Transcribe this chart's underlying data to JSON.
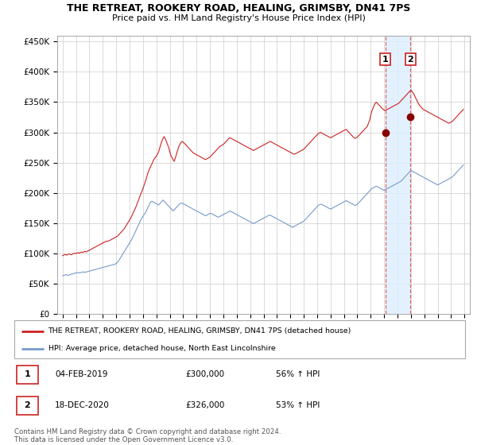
{
  "title": "THE RETREAT, ROOKERY ROAD, HEALING, GRIMSBY, DN41 7PS",
  "subtitle": "Price paid vs. HM Land Registry's House Price Index (HPI)",
  "legend_line1": "THE RETREAT, ROOKERY ROAD, HEALING, GRIMSBY, DN41 7PS (detached house)",
  "legend_line2": "HPI: Average price, detached house, North East Lincolnshire",
  "footnote": "Contains HM Land Registry data © Crown copyright and database right 2024.\nThis data is licensed under the Open Government Licence v3.0.",
  "annotation1": {
    "num": "1",
    "date": "04-FEB-2019",
    "price": "£300,000",
    "hpi": "56% ↑ HPI"
  },
  "annotation2": {
    "num": "2",
    "date": "18-DEC-2020",
    "price": "£326,000",
    "hpi": "53% ↑ HPI"
  },
  "vline1_x": 2019.08,
  "vline2_x": 2020.96,
  "dot1_x": 2019.08,
  "dot1_y": 300000,
  "dot2_x": 2020.96,
  "dot2_y": 326000,
  "red_color": "#cc2222",
  "blue_color": "#7799cc",
  "vline_color": "#dd6666",
  "highlight_color": "#ddeeff",
  "ylabel_vals": [
    0,
    50000,
    100000,
    150000,
    200000,
    250000,
    300000,
    350000,
    400000,
    450000
  ],
  "ylabel_labels": [
    "£0",
    "£50K",
    "£100K",
    "£150K",
    "£200K",
    "£250K",
    "£300K",
    "£350K",
    "£400K",
    "£450K"
  ],
  "xlim": [
    1994.6,
    2025.4
  ],
  "ylim": [
    0,
    460000
  ],
  "red_data_years": [
    1995.0,
    1995.08,
    1995.17,
    1995.25,
    1995.33,
    1995.42,
    1995.5,
    1995.58,
    1995.67,
    1995.75,
    1995.83,
    1995.92,
    1996.0,
    1996.08,
    1996.17,
    1996.25,
    1996.33,
    1996.42,
    1996.5,
    1996.58,
    1996.67,
    1996.75,
    1996.83,
    1996.92,
    1997.0,
    1997.08,
    1997.17,
    1997.25,
    1997.33,
    1997.42,
    1997.5,
    1997.58,
    1997.67,
    1997.75,
    1997.83,
    1997.92,
    1998.0,
    1998.08,
    1998.17,
    1998.25,
    1998.33,
    1998.42,
    1998.5,
    1998.58,
    1998.67,
    1998.75,
    1998.83,
    1998.92,
    1999.0,
    1999.08,
    1999.17,
    1999.25,
    1999.33,
    1999.42,
    1999.5,
    1999.58,
    1999.67,
    1999.75,
    1999.83,
    1999.92,
    2000.0,
    2000.08,
    2000.17,
    2000.25,
    2000.33,
    2000.42,
    2000.5,
    2000.58,
    2000.67,
    2000.75,
    2000.83,
    2000.92,
    2001.0,
    2001.08,
    2001.17,
    2001.25,
    2001.33,
    2001.42,
    2001.5,
    2001.58,
    2001.67,
    2001.75,
    2001.83,
    2001.92,
    2002.0,
    2002.08,
    2002.17,
    2002.25,
    2002.33,
    2002.42,
    2002.5,
    2002.58,
    2002.67,
    2002.75,
    2002.83,
    2002.92,
    2003.0,
    2003.08,
    2003.17,
    2003.25,
    2003.33,
    2003.42,
    2003.5,
    2003.58,
    2003.67,
    2003.75,
    2003.83,
    2003.92,
    2004.0,
    2004.08,
    2004.17,
    2004.25,
    2004.33,
    2004.42,
    2004.5,
    2004.58,
    2004.67,
    2004.75,
    2004.83,
    2004.92,
    2005.0,
    2005.08,
    2005.17,
    2005.25,
    2005.33,
    2005.42,
    2005.5,
    2005.58,
    2005.67,
    2005.75,
    2005.83,
    2005.92,
    2006.0,
    2006.08,
    2006.17,
    2006.25,
    2006.33,
    2006.42,
    2006.5,
    2006.58,
    2006.67,
    2006.75,
    2006.83,
    2006.92,
    2007.0,
    2007.08,
    2007.17,
    2007.25,
    2007.33,
    2007.42,
    2007.5,
    2007.58,
    2007.67,
    2007.75,
    2007.83,
    2007.92,
    2008.0,
    2008.08,
    2008.17,
    2008.25,
    2008.33,
    2008.42,
    2008.5,
    2008.58,
    2008.67,
    2008.75,
    2008.83,
    2008.92,
    2009.0,
    2009.08,
    2009.17,
    2009.25,
    2009.33,
    2009.42,
    2009.5,
    2009.58,
    2009.67,
    2009.75,
    2009.83,
    2009.92,
    2010.0,
    2010.08,
    2010.17,
    2010.25,
    2010.33,
    2010.42,
    2010.5,
    2010.58,
    2010.67,
    2010.75,
    2010.83,
    2010.92,
    2011.0,
    2011.08,
    2011.17,
    2011.25,
    2011.33,
    2011.42,
    2011.5,
    2011.58,
    2011.67,
    2011.75,
    2011.83,
    2011.92,
    2012.0,
    2012.08,
    2012.17,
    2012.25,
    2012.33,
    2012.42,
    2012.5,
    2012.58,
    2012.67,
    2012.75,
    2012.83,
    2012.92,
    2013.0,
    2013.08,
    2013.17,
    2013.25,
    2013.33,
    2013.42,
    2013.5,
    2013.58,
    2013.67,
    2013.75,
    2013.83,
    2013.92,
    2014.0,
    2014.08,
    2014.17,
    2014.25,
    2014.33,
    2014.42,
    2014.5,
    2014.58,
    2014.67,
    2014.75,
    2014.83,
    2014.92,
    2015.0,
    2015.08,
    2015.17,
    2015.25,
    2015.33,
    2015.42,
    2015.5,
    2015.58,
    2015.67,
    2015.75,
    2015.83,
    2015.92,
    2016.0,
    2016.08,
    2016.17,
    2016.25,
    2016.33,
    2016.42,
    2016.5,
    2016.58,
    2016.67,
    2016.75,
    2016.83,
    2016.92,
    2017.0,
    2017.08,
    2017.17,
    2017.25,
    2017.33,
    2017.42,
    2017.5,
    2017.58,
    2017.67,
    2017.75,
    2017.83,
    2017.92,
    2018.0,
    2018.08,
    2018.17,
    2018.25,
    2018.33,
    2018.42,
    2018.5,
    2018.58,
    2018.67,
    2018.75,
    2018.83,
    2018.92,
    2019.0,
    2019.08,
    2019.17,
    2019.25,
    2019.33,
    2019.42,
    2019.5,
    2019.58,
    2019.67,
    2019.75,
    2019.83,
    2019.92,
    2020.0,
    2020.08,
    2020.17,
    2020.25,
    2020.33,
    2020.42,
    2020.5,
    2020.58,
    2020.67,
    2020.75,
    2020.83,
    2020.92,
    2021.0,
    2021.08,
    2021.17,
    2021.25,
    2021.33,
    2021.42,
    2021.5,
    2021.58,
    2021.67,
    2021.75,
    2021.83,
    2021.92,
    2022.0,
    2022.08,
    2022.17,
    2022.25,
    2022.33,
    2022.42,
    2022.5,
    2022.58,
    2022.67,
    2022.75,
    2022.83,
    2022.92,
    2023.0,
    2023.08,
    2023.17,
    2023.25,
    2023.33,
    2023.42,
    2023.5,
    2023.58,
    2023.67,
    2023.75,
    2023.83,
    2023.92,
    2024.0,
    2024.08,
    2024.17,
    2024.25,
    2024.33,
    2024.42,
    2024.5,
    2024.58,
    2024.67,
    2024.75,
    2024.83,
    2024.92
  ],
  "red_data_values": [
    96000,
    97000,
    98000,
    97500,
    97000,
    98500,
    99000,
    98000,
    97500,
    99000,
    100000,
    99500,
    100000,
    100500,
    101000,
    100000,
    101500,
    102000,
    101000,
    102500,
    103000,
    102000,
    103500,
    104000,
    105000,
    106000,
    107000,
    108000,
    109000,
    110000,
    111000,
    112000,
    113000,
    114000,
    115000,
    116000,
    117000,
    118000,
    119000,
    120000,
    119500,
    120500,
    121000,
    122000,
    123000,
    124000,
    125000,
    126000,
    127000,
    128000,
    130000,
    132000,
    134000,
    136000,
    138000,
    140000,
    143000,
    146000,
    149000,
    152000,
    155000,
    158000,
    162000,
    166000,
    170000,
    174000,
    178000,
    183000,
    188000,
    193000,
    198000,
    202000,
    207000,
    212000,
    218000,
    224000,
    230000,
    236000,
    240000,
    244000,
    248000,
    252000,
    256000,
    258000,
    261000,
    264000,
    268000,
    274000,
    280000,
    286000,
    290000,
    293000,
    289000,
    285000,
    280000,
    275000,
    268000,
    262000,
    258000,
    255000,
    252000,
    258000,
    264000,
    270000,
    276000,
    280000,
    283000,
    285000,
    284000,
    282000,
    280000,
    278000,
    276000,
    274000,
    272000,
    270000,
    268000,
    266000,
    265000,
    264000,
    263000,
    262000,
    261000,
    260000,
    259000,
    258000,
    257000,
    256000,
    255000,
    256000,
    257000,
    258000,
    259000,
    261000,
    263000,
    265000,
    267000,
    269000,
    271000,
    273000,
    275000,
    277000,
    278000,
    279000,
    280000,
    282000,
    284000,
    286000,
    288000,
    290000,
    291000,
    290000,
    289000,
    288000,
    287000,
    286000,
    285000,
    284000,
    283000,
    282000,
    281000,
    280000,
    279000,
    278000,
    277000,
    276000,
    275000,
    274000,
    273000,
    272000,
    271000,
    270000,
    271000,
    272000,
    273000,
    274000,
    275000,
    276000,
    277000,
    278000,
    279000,
    280000,
    281000,
    282000,
    283000,
    284000,
    285000,
    284000,
    283000,
    282000,
    281000,
    280000,
    279000,
    278000,
    277000,
    276000,
    275000,
    274000,
    273000,
    272000,
    271000,
    270000,
    269000,
    268000,
    267000,
    266000,
    265000,
    264000,
    264000,
    265000,
    266000,
    267000,
    268000,
    269000,
    270000,
    271000,
    272000,
    274000,
    276000,
    278000,
    280000,
    282000,
    284000,
    286000,
    288000,
    290000,
    292000,
    294000,
    296000,
    298000,
    299000,
    300000,
    299000,
    298000,
    297000,
    296000,
    295000,
    294000,
    293000,
    292000,
    291000,
    292000,
    293000,
    294000,
    295000,
    296000,
    297000,
    298000,
    299000,
    300000,
    301000,
    302000,
    303000,
    304000,
    305000,
    303000,
    301000,
    299000,
    297000,
    295000,
    293000,
    291000,
    290000,
    291000,
    292000,
    294000,
    296000,
    298000,
    300000,
    302000,
    304000,
    306000,
    308000,
    310000,
    315000,
    320000,
    328000,
    335000,
    340000,
    344000,
    348000,
    350000,
    348000,
    346000,
    344000,
    342000,
    340000,
    338000,
    337000,
    336000,
    337000,
    338000,
    339000,
    340000,
    341000,
    342000,
    343000,
    344000,
    345000,
    346000,
    347000,
    348000,
    350000,
    352000,
    354000,
    356000,
    358000,
    360000,
    362000,
    364000,
    366000,
    368000,
    370000,
    368000,
    365000,
    362000,
    358000,
    354000,
    350000,
    347000,
    344000,
    342000,
    340000,
    338000,
    337000,
    336000,
    335000,
    334000,
    333000,
    332000,
    331000,
    330000,
    329000,
    328000,
    327000,
    326000,
    325000,
    324000,
    323000,
    322000,
    321000,
    320000,
    319000,
    318000,
    317000,
    316000,
    315000,
    316000,
    317000,
    318000,
    320000,
    322000,
    324000,
    326000,
    328000,
    330000,
    332000,
    334000,
    336000,
    338000
  ],
  "blue_data_years": [
    1995.0,
    1995.08,
    1995.17,
    1995.25,
    1995.33,
    1995.42,
    1995.5,
    1995.58,
    1995.67,
    1995.75,
    1995.83,
    1995.92,
    1996.0,
    1996.08,
    1996.17,
    1996.25,
    1996.33,
    1996.42,
    1996.5,
    1996.58,
    1996.67,
    1996.75,
    1996.83,
    1996.92,
    1997.0,
    1997.08,
    1997.17,
    1997.25,
    1997.33,
    1997.42,
    1997.5,
    1997.58,
    1997.67,
    1997.75,
    1997.83,
    1997.92,
    1998.0,
    1998.08,
    1998.17,
    1998.25,
    1998.33,
    1998.42,
    1998.5,
    1998.58,
    1998.67,
    1998.75,
    1998.83,
    1998.92,
    1999.0,
    1999.08,
    1999.17,
    1999.25,
    1999.33,
    1999.42,
    1999.5,
    1999.58,
    1999.67,
    1999.75,
    1999.83,
    1999.92,
    2000.0,
    2000.08,
    2000.17,
    2000.25,
    2000.33,
    2000.42,
    2000.5,
    2000.58,
    2000.67,
    2000.75,
    2000.83,
    2000.92,
    2001.0,
    2001.08,
    2001.17,
    2001.25,
    2001.33,
    2001.42,
    2001.5,
    2001.58,
    2001.67,
    2001.75,
    2001.83,
    2001.92,
    2002.0,
    2002.08,
    2002.17,
    2002.25,
    2002.33,
    2002.42,
    2002.5,
    2002.58,
    2002.67,
    2002.75,
    2002.83,
    2002.92,
    2003.0,
    2003.08,
    2003.17,
    2003.25,
    2003.33,
    2003.42,
    2003.5,
    2003.58,
    2003.67,
    2003.75,
    2003.83,
    2003.92,
    2004.0,
    2004.08,
    2004.17,
    2004.25,
    2004.33,
    2004.42,
    2004.5,
    2004.58,
    2004.67,
    2004.75,
    2004.83,
    2004.92,
    2005.0,
    2005.08,
    2005.17,
    2005.25,
    2005.33,
    2005.42,
    2005.5,
    2005.58,
    2005.67,
    2005.75,
    2005.83,
    2005.92,
    2006.0,
    2006.08,
    2006.17,
    2006.25,
    2006.33,
    2006.42,
    2006.5,
    2006.58,
    2006.67,
    2006.75,
    2006.83,
    2006.92,
    2007.0,
    2007.08,
    2007.17,
    2007.25,
    2007.33,
    2007.42,
    2007.5,
    2007.58,
    2007.67,
    2007.75,
    2007.83,
    2007.92,
    2008.0,
    2008.08,
    2008.17,
    2008.25,
    2008.33,
    2008.42,
    2008.5,
    2008.58,
    2008.67,
    2008.75,
    2008.83,
    2008.92,
    2009.0,
    2009.08,
    2009.17,
    2009.25,
    2009.33,
    2009.42,
    2009.5,
    2009.58,
    2009.67,
    2009.75,
    2009.83,
    2009.92,
    2010.0,
    2010.08,
    2010.17,
    2010.25,
    2010.33,
    2010.42,
    2010.5,
    2010.58,
    2010.67,
    2010.75,
    2010.83,
    2010.92,
    2011.0,
    2011.08,
    2011.17,
    2011.25,
    2011.33,
    2011.42,
    2011.5,
    2011.58,
    2011.67,
    2011.75,
    2011.83,
    2011.92,
    2012.0,
    2012.08,
    2012.17,
    2012.25,
    2012.33,
    2012.42,
    2012.5,
    2012.58,
    2012.67,
    2012.75,
    2012.83,
    2012.92,
    2013.0,
    2013.08,
    2013.17,
    2013.25,
    2013.33,
    2013.42,
    2013.5,
    2013.58,
    2013.67,
    2013.75,
    2013.83,
    2013.92,
    2014.0,
    2014.08,
    2014.17,
    2014.25,
    2014.33,
    2014.42,
    2014.5,
    2014.58,
    2014.67,
    2014.75,
    2014.83,
    2014.92,
    2015.0,
    2015.08,
    2015.17,
    2015.25,
    2015.33,
    2015.42,
    2015.5,
    2015.58,
    2015.67,
    2015.75,
    2015.83,
    2015.92,
    2016.0,
    2016.08,
    2016.17,
    2016.25,
    2016.33,
    2016.42,
    2016.5,
    2016.58,
    2016.67,
    2016.75,
    2016.83,
    2016.92,
    2017.0,
    2017.08,
    2017.17,
    2017.25,
    2017.33,
    2017.42,
    2017.5,
    2017.58,
    2017.67,
    2017.75,
    2017.83,
    2017.92,
    2018.0,
    2018.08,
    2018.17,
    2018.25,
    2018.33,
    2018.42,
    2018.5,
    2018.58,
    2018.67,
    2018.75,
    2018.83,
    2018.92,
    2019.0,
    2019.08,
    2019.17,
    2019.25,
    2019.33,
    2019.42,
    2019.5,
    2019.58,
    2019.67,
    2019.75,
    2019.83,
    2019.92,
    2020.0,
    2020.08,
    2020.17,
    2020.25,
    2020.33,
    2020.42,
    2020.5,
    2020.58,
    2020.67,
    2020.75,
    2020.83,
    2020.92,
    2021.0,
    2021.08,
    2021.17,
    2021.25,
    2021.33,
    2021.42,
    2021.5,
    2021.58,
    2021.67,
    2021.75,
    2021.83,
    2021.92,
    2022.0,
    2022.08,
    2022.17,
    2022.25,
    2022.33,
    2022.42,
    2022.5,
    2022.58,
    2022.67,
    2022.75,
    2022.83,
    2022.92,
    2023.0,
    2023.08,
    2023.17,
    2023.25,
    2023.33,
    2023.42,
    2023.5,
    2023.58,
    2023.67,
    2023.75,
    2023.83,
    2023.92,
    2024.0,
    2024.08,
    2024.17,
    2024.25,
    2024.33,
    2024.42,
    2024.5,
    2024.58,
    2024.67,
    2024.75,
    2024.83,
    2024.92
  ],
  "blue_data_values": [
    63000,
    63500,
    64000,
    64500,
    64000,
    63500,
    64000,
    65000,
    65500,
    66000,
    66500,
    67000,
    67500,
    68000,
    68000,
    67500,
    68000,
    68500,
    69000,
    69000,
    68500,
    69000,
    69500,
    70000,
    70500,
    71000,
    71500,
    72000,
    72500,
    73000,
    73500,
    74000,
    74500,
    75000,
    75500,
    76000,
    76500,
    77000,
    77500,
    78000,
    78500,
    79000,
    79500,
    80000,
    80500,
    81000,
    81500,
    82000,
    83000,
    85000,
    87000,
    90000,
    93000,
    96000,
    99000,
    102000,
    105000,
    108000,
    111000,
    114000,
    117000,
    120000,
    123000,
    127000,
    131000,
    135000,
    139000,
    143000,
    147000,
    151000,
    155000,
    158000,
    161000,
    164000,
    167000,
    170000,
    174000,
    178000,
    182000,
    185000,
    186000,
    185000,
    184000,
    183000,
    182000,
    181000,
    180000,
    182000,
    184000,
    186000,
    188000,
    186000,
    184000,
    182000,
    180000,
    178000,
    176000,
    174000,
    172000,
    170000,
    172000,
    174000,
    176000,
    178000,
    180000,
    182000,
    183000,
    183000,
    182000,
    181000,
    180000,
    179000,
    178000,
    177000,
    176000,
    175000,
    174000,
    173000,
    172000,
    171000,
    170000,
    169000,
    168000,
    167000,
    166000,
    165000,
    164000,
    163000,
    162000,
    163000,
    164000,
    165000,
    166000,
    166000,
    165000,
    164000,
    163000,
    162000,
    161000,
    160000,
    160000,
    161000,
    162000,
    163000,
    164000,
    165000,
    166000,
    167000,
    168000,
    169000,
    170000,
    169000,
    168000,
    167000,
    166000,
    165000,
    164000,
    163000,
    162000,
    161000,
    160000,
    159000,
    158000,
    157000,
    156000,
    155000,
    154000,
    153000,
    152000,
    151000,
    150000,
    149000,
    150000,
    151000,
    152000,
    153000,
    154000,
    155000,
    156000,
    157000,
    158000,
    159000,
    160000,
    161000,
    162000,
    163000,
    163000,
    162000,
    161000,
    160000,
    159000,
    158000,
    157000,
    156000,
    155000,
    154000,
    153000,
    152000,
    151000,
    150000,
    149000,
    148000,
    147000,
    146000,
    145000,
    144000,
    143000,
    144000,
    145000,
    146000,
    147000,
    148000,
    149000,
    150000,
    151000,
    152000,
    153000,
    155000,
    157000,
    159000,
    161000,
    163000,
    165000,
    167000,
    169000,
    171000,
    173000,
    175000,
    177000,
    179000,
    180000,
    181000,
    181000,
    180000,
    179000,
    178000,
    177000,
    176000,
    175000,
    174000,
    173000,
    174000,
    175000,
    176000,
    177000,
    178000,
    179000,
    180000,
    181000,
    182000,
    183000,
    184000,
    185000,
    186000,
    187000,
    186000,
    185000,
    184000,
    183000,
    182000,
    181000,
    180000,
    179000,
    180000,
    181000,
    183000,
    185000,
    187000,
    189000,
    191000,
    193000,
    195000,
    197000,
    199000,
    201000,
    203000,
    205000,
    207000,
    208000,
    209000,
    210000,
    211000,
    210000,
    209000,
    208000,
    207000,
    206000,
    205000,
    204000,
    205000,
    206000,
    207000,
    208000,
    209000,
    210000,
    211000,
    212000,
    213000,
    214000,
    215000,
    216000,
    217000,
    218000,
    219000,
    221000,
    223000,
    225000,
    227000,
    229000,
    231000,
    233000,
    235000,
    237000,
    236000,
    235000,
    234000,
    233000,
    232000,
    231000,
    230000,
    229000,
    228000,
    227000,
    226000,
    225000,
    224000,
    223000,
    222000,
    221000,
    220000,
    219000,
    218000,
    217000,
    216000,
    215000,
    214000,
    213000,
    214000,
    215000,
    216000,
    217000,
    218000,
    219000,
    220000,
    221000,
    222000,
    223000,
    224000,
    225000,
    226000,
    228000,
    230000,
    232000,
    234000,
    236000,
    238000,
    240000,
    242000,
    244000,
    246000
  ]
}
